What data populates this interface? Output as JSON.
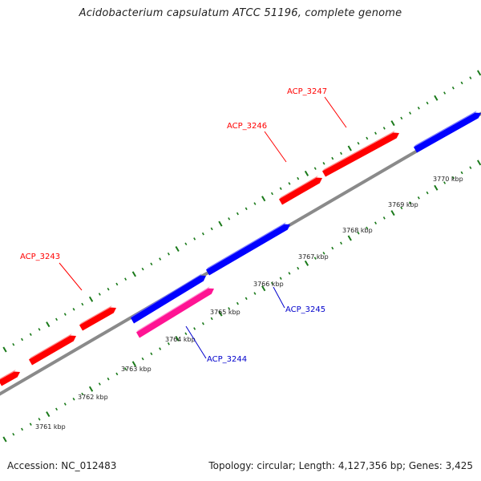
{
  "title": "Acidobacterium capsulatum ATCC 51196, complete genome",
  "footer": {
    "accession": "Accession: NC_012483",
    "topology": "Topology: circular; Length: 4,127,356 bp; Genes: 3,425"
  },
  "colors": {
    "forward_gene": "#ff0000",
    "reverse_gene": "#0000ff",
    "highlight_gene": "#ff1493",
    "backbone": "#888888",
    "ticks": "#1a7a1a",
    "forward_label": "#ff0000",
    "reverse_label": "#0000cc"
  },
  "scale": {
    "unit": "kbp",
    "tick_labels": [
      "3761 kbp",
      "3762 kbp",
      "3763 kbp",
      "3764 kbp",
      "3765 kbp",
      "3766 kbp",
      "3767 kbp",
      "3768 kbp",
      "3769 kbp",
      "3770 kbp"
    ]
  },
  "genes": [
    {
      "label": "ACP_3243",
      "strand": "forward"
    },
    {
      "label": "ACP_3244",
      "strand": "reverse",
      "highlight": true
    },
    {
      "label": "ACP_3245",
      "strand": "reverse"
    },
    {
      "label": "ACP_3246",
      "strand": "forward"
    },
    {
      "label": "ACP_3247",
      "strand": "forward"
    }
  ]
}
